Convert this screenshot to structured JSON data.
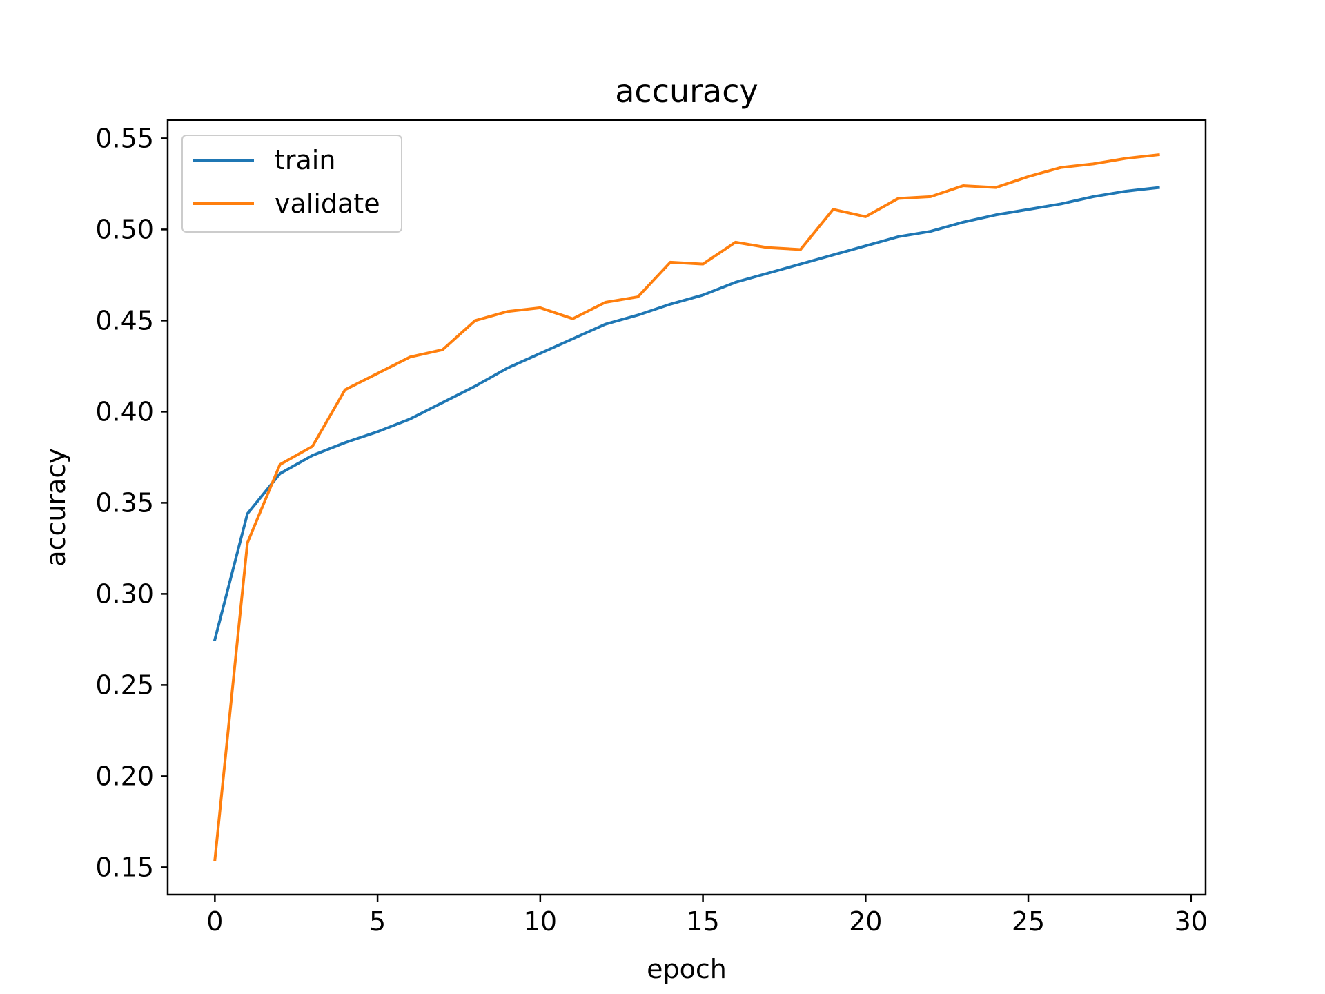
{
  "chart_data": {
    "type": "line",
    "title": "accuracy",
    "xlabel": "epoch",
    "ylabel": "accuracy",
    "xlim": [
      -1.45,
      30.45
    ],
    "ylim": [
      0.135,
      0.56
    ],
    "x_ticks": [
      0,
      5,
      10,
      15,
      20,
      25,
      30
    ],
    "x_tick_labels": [
      "0",
      "5",
      "10",
      "15",
      "20",
      "25",
      "30"
    ],
    "y_ticks": [
      0.15,
      0.2,
      0.25,
      0.3,
      0.35,
      0.4,
      0.45,
      0.5,
      0.55
    ],
    "y_tick_labels": [
      "0.15",
      "0.20",
      "0.25",
      "0.30",
      "0.35",
      "0.40",
      "0.45",
      "0.50",
      "0.55"
    ],
    "grid": false,
    "legend_position": "upper-left",
    "x": [
      0,
      1,
      2,
      3,
      4,
      5,
      6,
      7,
      8,
      9,
      10,
      11,
      12,
      13,
      14,
      15,
      16,
      17,
      18,
      19,
      20,
      21,
      22,
      23,
      24,
      25,
      26,
      27,
      28,
      29
    ],
    "series": [
      {
        "name": "train",
        "color": "#1f77b4",
        "values": [
          0.275,
          0.344,
          0.366,
          0.376,
          0.383,
          0.389,
          0.396,
          0.405,
          0.414,
          0.424,
          0.432,
          0.44,
          0.448,
          0.453,
          0.459,
          0.464,
          0.471,
          0.476,
          0.481,
          0.486,
          0.491,
          0.496,
          0.499,
          0.504,
          0.508,
          0.511,
          0.514,
          0.518,
          0.521,
          0.523
        ]
      },
      {
        "name": "validate",
        "color": "#ff7f0e",
        "values": [
          0.154,
          0.328,
          0.371,
          0.381,
          0.412,
          0.421,
          0.43,
          0.434,
          0.45,
          0.455,
          0.457,
          0.451,
          0.46,
          0.463,
          0.482,
          0.481,
          0.493,
          0.49,
          0.489,
          0.511,
          0.507,
          0.517,
          0.518,
          0.524,
          0.523,
          0.529,
          0.534,
          0.536,
          0.539,
          0.541
        ]
      }
    ]
  }
}
